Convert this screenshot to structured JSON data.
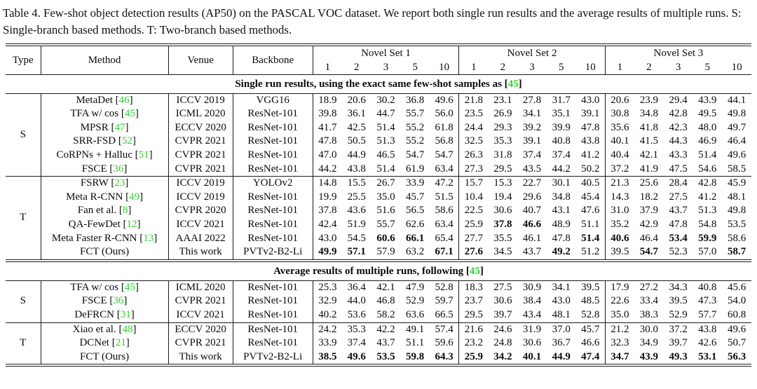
{
  "caption": "Table 4. Few-shot object detection results (AP50) on the PASCAL VOC dataset. We report both single run results and the average results of multiple runs. S: Single-branch based methods. T: Two-branch based methods.",
  "colors": {
    "cite_green": "#2ed32e",
    "rule": "#1a1a1a",
    "text": "#0a0a0a"
  },
  "header": {
    "type": "Type",
    "method": "Method",
    "venue": "Venue",
    "backbone": "Backbone",
    "novel_sets": [
      "Novel Set 1",
      "Novel Set 2",
      "Novel Set 3"
    ],
    "shots": [
      "1",
      "2",
      "3",
      "5",
      "10"
    ]
  },
  "sections": [
    {
      "title": {
        "pre": "Single run results, using the exact same few-shot samples as [",
        "cite": "45",
        "post": "]"
      },
      "groups": [
        {
          "type": "S",
          "rows": [
            {
              "method": "MetaDet",
              "cite": "46",
              "venue": "ICCV 2019",
              "backbone": "VGG16",
              "values": [
                "18.9",
                "20.6",
                "30.2",
                "36.8",
                "49.6",
                "21.8",
                "23.1",
                "27.8",
                "31.7",
                "43.0",
                "20.6",
                "23.9",
                "29.4",
                "43.9",
                "44.1"
              ],
              "bold": []
            },
            {
              "method": "TFA w/ cos",
              "cite": "45",
              "venue": "ICML 2020",
              "backbone": "ResNet-101",
              "values": [
                "39.8",
                "36.1",
                "44.7",
                "55.7",
                "56.0",
                "23.5",
                "26.9",
                "34.1",
                "35.1",
                "39.1",
                "30.8",
                "34.8",
                "42.8",
                "49.5",
                "49.8"
              ],
              "bold": []
            },
            {
              "method": "MPSR",
              "cite": "47",
              "venue": "ECCV 2020",
              "backbone": "ResNet-101",
              "values": [
                "41.7",
                "42.5",
                "51.4",
                "55.2",
                "61.8",
                "24.4",
                "29.3",
                "39.2",
                "39.9",
                "47.8",
                "35.6",
                "41.8",
                "42.3",
                "48.0",
                "49.7"
              ],
              "bold": []
            },
            {
              "method": "SRR-FSD",
              "cite": "52",
              "venue": "CVPR 2021",
              "backbone": "ResNet-101",
              "values": [
                "47.8",
                "50.5",
                "51.3",
                "55.2",
                "56.8",
                "32.5",
                "35.3",
                "39.1",
                "40.8",
                "43.8",
                "40.1",
                "41.5",
                "44.3",
                "46.9",
                "46.4"
              ],
              "bold": []
            },
            {
              "method": "CoRPNs + Halluc",
              "cite": "51",
              "venue": "CVPR 2021",
              "backbone": "ResNet-101",
              "values": [
                "47.0",
                "44.9",
                "46.5",
                "54.7",
                "54.7",
                "26.3",
                "31.8",
                "37.4",
                "37.4",
                "41.2",
                "40.4",
                "42.1",
                "43.3",
                "51.4",
                "49.6"
              ],
              "bold": []
            },
            {
              "method": "FSCE",
              "cite": "36",
              "venue": "CVPR 2021",
              "backbone": "ResNet-101",
              "values": [
                "44.2",
                "43.8",
                "51.4",
                "61.9",
                "63.4",
                "27.3",
                "29.5",
                "43.5",
                "44.2",
                "50.2",
                "37.2",
                "41.9",
                "47.5",
                "54.6",
                "58.5"
              ],
              "bold": []
            }
          ]
        },
        {
          "type": "T",
          "rows": [
            {
              "method": "FSRW",
              "cite": "23",
              "venue": "ICCV 2019",
              "backbone": "YOLOv2",
              "values": [
                "14.8",
                "15.5",
                "26.7",
                "33.9",
                "47.2",
                "15.7",
                "15.3",
                "22.7",
                "30.1",
                "40.5",
                "21.3",
                "25.6",
                "28.4",
                "42.8",
                "45.9"
              ],
              "bold": []
            },
            {
              "method": "Meta R-CNN",
              "cite": "49",
              "venue": "ICCV 2019",
              "backbone": "ResNet-101",
              "values": [
                "19.9",
                "25.5",
                "35.0",
                "45.7",
                "51.5",
                "10.4",
                "19.4",
                "29.6",
                "34.8",
                "45.4",
                "14.3",
                "18.2",
                "27.5",
                "41.2",
                "48.1"
              ],
              "bold": []
            },
            {
              "method": "Fan et al.",
              "cite": "8",
              "venue": "CVPR 2020",
              "backbone": "ResNet-101",
              "values": [
                "37.8",
                "43.6",
                "51.6",
                "56.5",
                "58.6",
                "22.5",
                "30.6",
                "40.7",
                "43.1",
                "47.6",
                "31.0",
                "37.9",
                "43.7",
                "51.3",
                "49.8"
              ],
              "bold": []
            },
            {
              "method": "QA-FewDet",
              "cite": "12",
              "venue": "ICCV 2021",
              "backbone": "ResNet-101",
              "values": [
                "42.4",
                "51.9",
                "55.7",
                "62.6",
                "63.4",
                "25.9",
                "37.8",
                "46.6",
                "48.9",
                "51.1",
                "35.2",
                "42.9",
                "47.8",
                "54.8",
                "53.5"
              ],
              "bold": [
                6,
                7
              ]
            },
            {
              "method": "Meta Faster R-CNN",
              "cite": "13",
              "venue": "AAAI 2022",
              "backbone": "ResNet-101",
              "values": [
                "43.0",
                "54.5",
                "60.6",
                "66.1",
                "65.4",
                "27.7",
                "35.5",
                "46.1",
                "47.8",
                "51.4",
                "40.6",
                "46.4",
                "53.4",
                "59.9",
                "58.6"
              ],
              "bold": [
                2,
                3,
                9,
                10,
                12,
                13
              ]
            },
            {
              "method": "FCT (Ours)",
              "cite": null,
              "venue": "This work",
              "backbone": "PVTv2-B2-Li",
              "values": [
                "49.9",
                "57.1",
                "57.9",
                "63.2",
                "67.1",
                "27.6",
                "34.5",
                "43.7",
                "49.2",
                "51.2",
                "39.5",
                "54.7",
                "52.3",
                "57.0",
                "58.7"
              ],
              "bold": [
                0,
                1,
                4,
                5,
                8,
                11,
                14
              ]
            }
          ]
        }
      ]
    },
    {
      "title": {
        "pre": "Average results of multiple runs, following [",
        "cite": "45",
        "post": "]"
      },
      "groups": [
        {
          "type": "S",
          "rows": [
            {
              "method": "TFA w/ cos",
              "cite": "45",
              "venue": "ICML 2020",
              "backbone": "ResNet-101",
              "values": [
                "25.3",
                "36.4",
                "42.1",
                "47.9",
                "52.8",
                "18.3",
                "27.5",
                "30.9",
                "34.1",
                "39.5",
                "17.9",
                "27.2",
                "34.3",
                "40.8",
                "45.6"
              ],
              "bold": []
            },
            {
              "method": "FSCE",
              "cite": "36",
              "venue": "CVPR 2021",
              "backbone": "ResNet-101",
              "values": [
                "32.9",
                "44.0",
                "46.8",
                "52.9",
                "59.7",
                "23.7",
                "30.6",
                "38.4",
                "43.0",
                "48.5",
                "22.6",
                "33.4",
                "39.5",
                "47.3",
                "54.0"
              ],
              "bold": []
            },
            {
              "method": "DeFRCN",
              "cite": "31",
              "venue": "ICCV 2021",
              "backbone": "ResNet-101",
              "values": [
                "40.2",
                "53.6",
                "58.2",
                "63.6",
                "66.5",
                "29.5",
                "39.7",
                "43.4",
                "48.1",
                "52.8",
                "35.0",
                "38.3",
                "52.9",
                "57.7",
                "60.8"
              ],
              "bold": []
            }
          ]
        },
        {
          "type": "T",
          "rows": [
            {
              "method": "Xiao et al.",
              "cite": "48",
              "venue": "ECCV 2020",
              "backbone": "ResNet-101",
              "values": [
                "24.2",
                "35.3",
                "42.2",
                "49.1",
                "57.4",
                "21.6",
                "24.6",
                "31.9",
                "37.0",
                "45.7",
                "21.2",
                "30.0",
                "37.2",
                "43.8",
                "49.6"
              ],
              "bold": []
            },
            {
              "method": "DCNet",
              "cite": "21",
              "venue": "CVPR 2021",
              "backbone": "ResNet-101",
              "values": [
                "33.9",
                "37.4",
                "43.7",
                "51.1",
                "59.6",
                "23.2",
                "24.8",
                "30.6",
                "36.7",
                "46.6",
                "32.3",
                "34.9",
                "39.7",
                "42.6",
                "50.7"
              ],
              "bold": []
            },
            {
              "method": "FCT (Ours)",
              "cite": null,
              "venue": "This work",
              "backbone": "PVTv2-B2-Li",
              "values": [
                "38.5",
                "49.6",
                "53.5",
                "59.8",
                "64.3",
                "25.9",
                "34.2",
                "40.1",
                "44.9",
                "47.4",
                "34.7",
                "43.9",
                "49.3",
                "53.1",
                "56.3"
              ],
              "bold": [
                0,
                1,
                2,
                3,
                4,
                5,
                6,
                7,
                8,
                9,
                10,
                11,
                12,
                13,
                14
              ]
            }
          ]
        }
      ]
    }
  ]
}
